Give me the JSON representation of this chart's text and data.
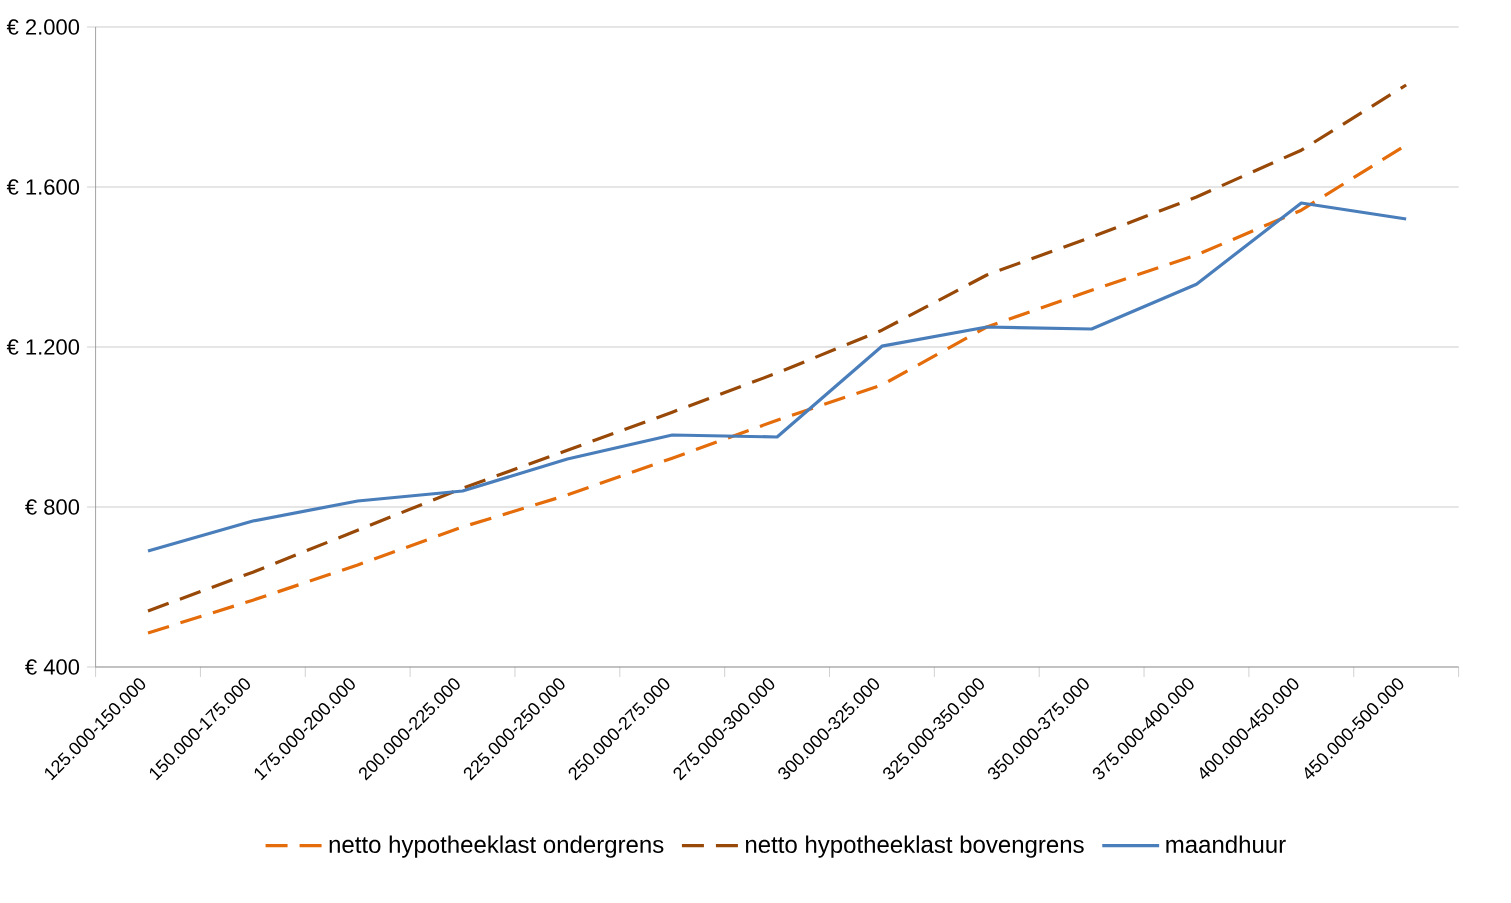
{
  "chart_data": {
    "type": "line",
    "categories": [
      "125.000-150.000",
      "150.000-175.000",
      "175.000-200.000",
      "200.000-225.000",
      "225.000-250.000",
      "250.000-275.000",
      "275.000-300.000",
      "300.000-325.000",
      "325.000-350.000",
      "350.000-375.000",
      "375.000-400.000",
      "400.000-450.000",
      "450.000-500.000"
    ],
    "series": [
      {
        "name": "netto hypotheeklast ondergrens",
        "color": "#e46c0a",
        "line_style": "dashed",
        "values": [
          485,
          567,
          655,
          750,
          830,
          922,
          1017,
          1105,
          1250,
          1342,
          1430,
          1542,
          1705
        ]
      },
      {
        "name": "netto hypotheeklast bovengrens",
        "color": "#984807",
        "line_style": "dashed",
        "values": [
          540,
          637,
          742,
          847,
          942,
          1037,
          1135,
          1242,
          1380,
          1475,
          1575,
          1692,
          1855
        ]
      },
      {
        "name": "maandhuur",
        "color": "#4a7ebb",
        "line_style": "solid",
        "values": [
          690,
          765,
          815,
          840,
          920,
          980,
          975,
          1202,
          1250,
          1245,
          1357,
          1560,
          1520
        ]
      }
    ],
    "ylim": [
      400,
      2000
    ],
    "yticks": [
      {
        "value": 400,
        "label": "€ 400"
      },
      {
        "value": 800,
        "label": "€ 800"
      },
      {
        "value": 1200,
        "label": "€ 1.200"
      },
      {
        "value": 1600,
        "label": "€ 1.600"
      },
      {
        "value": 2000,
        "label": "€ 2.000"
      }
    ],
    "grid": "y",
    "legend": "bottom",
    "marker": "none"
  }
}
